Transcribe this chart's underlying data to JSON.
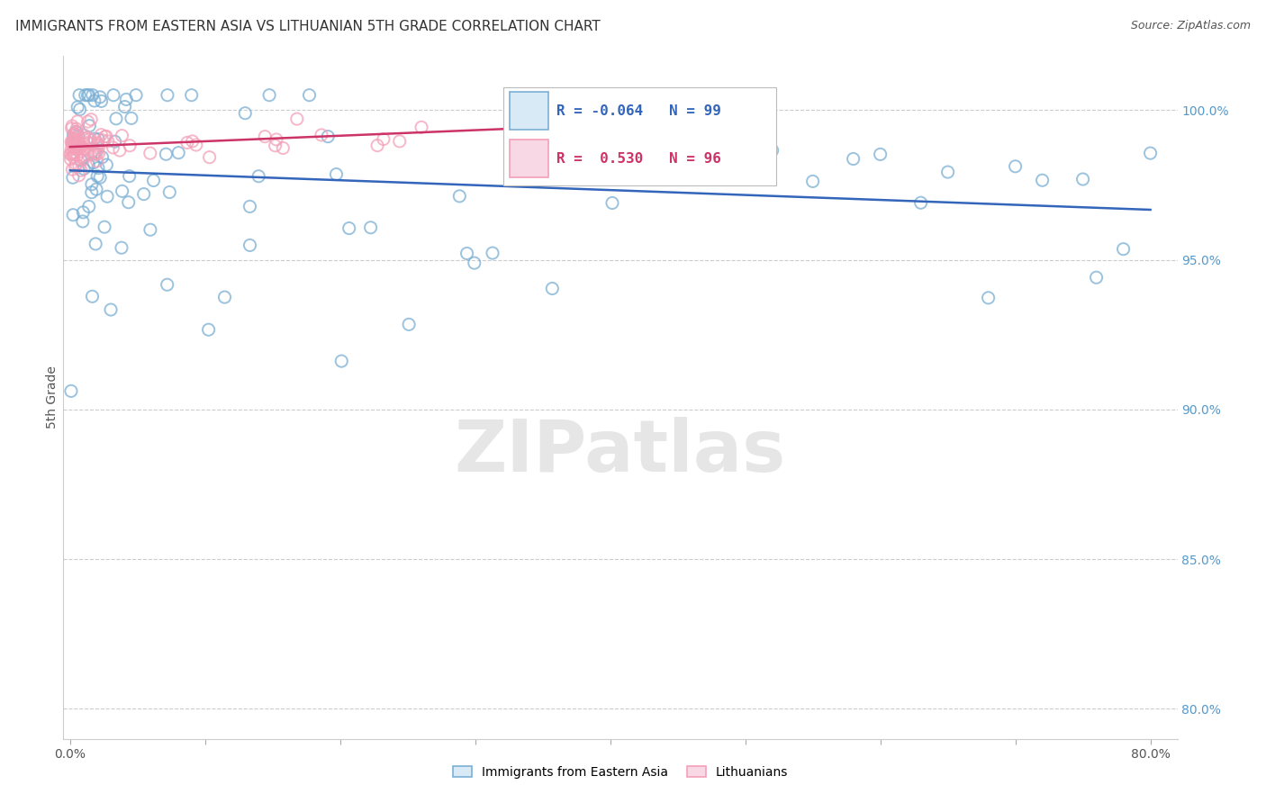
{
  "title": "IMMIGRANTS FROM EASTERN ASIA VS LITHUANIAN 5TH GRADE CORRELATION CHART",
  "source": "Source: ZipAtlas.com",
  "ylabel": "5th Grade",
  "watermark": "ZIPatlas",
  "blue_R": "-0.064",
  "blue_N": "99",
  "pink_R": "0.530",
  "pink_N": "96",
  "yticks": [
    100.0,
    95.0,
    90.0,
    85.0,
    80.0
  ],
  "ylim": [
    79.0,
    101.8
  ],
  "xlim": [
    -0.005,
    0.82
  ],
  "blue_color": "#7BAFD4",
  "pink_color": "#F4A0B8",
  "blue_line_color": "#3366BB",
  "pink_line_color": "#CC3366",
  "grid_color": "#CCCCCC",
  "right_axis_color": "#5599CC",
  "title_color": "#333333",
  "legend_label_blue": "Immigrants from Eastern Asia",
  "legend_label_pink": "Lithuanians"
}
